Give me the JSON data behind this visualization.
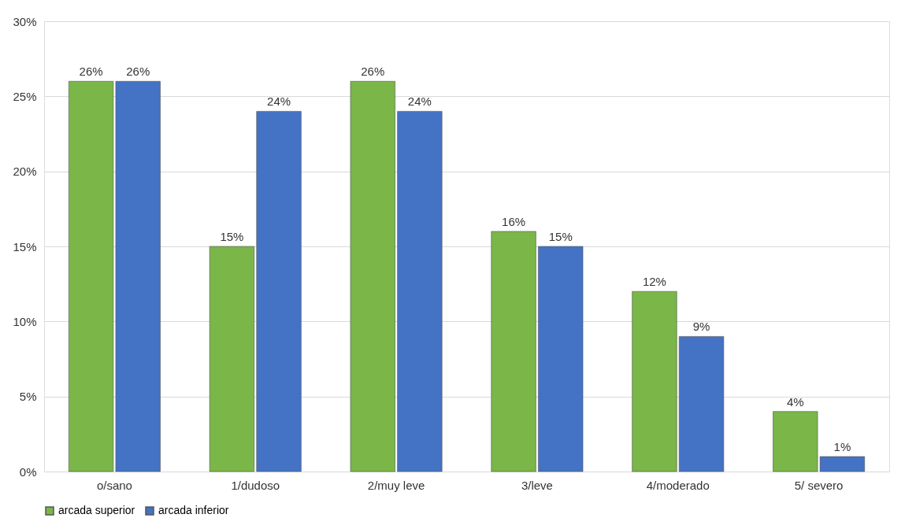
{
  "chart_data": {
    "type": "bar",
    "categories": [
      "o/sano",
      "1/dudoso",
      "2/muy leve",
      "3/leve",
      "4/moderado",
      "5/ severo"
    ],
    "series": [
      {
        "name": "arcada superior",
        "color": "#7ab648",
        "values": [
          26,
          15,
          26,
          16,
          12,
          4
        ],
        "value_labels": [
          "26%",
          "15%",
          "26%",
          "16%",
          "12%",
          "4%"
        ]
      },
      {
        "name": "arcada inferior",
        "color": "#4472c4",
        "values": [
          26,
          24,
          24,
          15,
          9,
          1
        ],
        "value_labels": [
          "26%",
          "24%",
          "24%",
          "15%",
          "9%",
          "1%"
        ]
      }
    ],
    "ylim": [
      0,
      30
    ],
    "yticks": [
      {
        "value": 0,
        "label": "0%"
      },
      {
        "value": 5,
        "label": "5%"
      },
      {
        "value": 10,
        "label": "10%"
      },
      {
        "value": 15,
        "label": "15%"
      },
      {
        "value": 20,
        "label": "20%"
      },
      {
        "value": 25,
        "label": "25%"
      },
      {
        "value": 30,
        "label": "30%"
      }
    ],
    "grid": "y",
    "legend": "bottom"
  }
}
